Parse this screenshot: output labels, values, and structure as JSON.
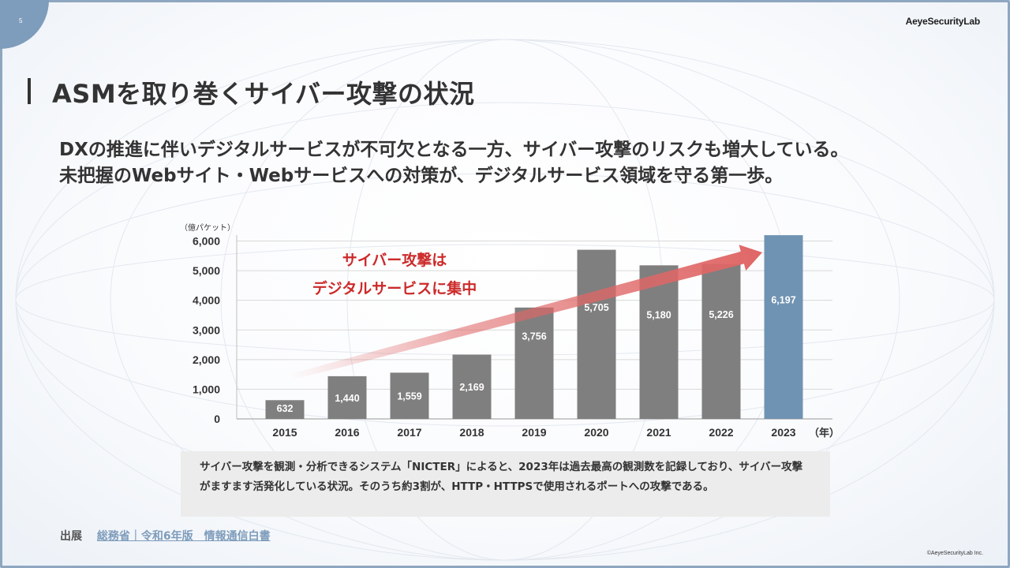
{
  "page_number": "5",
  "brand": "AeyeSecurityLab",
  "title": "ASMを取り巻くサイバー攻撃の状況",
  "lead": [
    "DXの推進に伴いデジタルサービスが不可欠となる一方、サイバー攻撃のリスクも増大している。",
    "未把握のWebサイト・Webサービスへの対策が、デジタルサービス領域を守る第一歩。"
  ],
  "chart_data": {
    "type": "bar",
    "categories": [
      "2015",
      "2016",
      "2017",
      "2018",
      "2019",
      "2020",
      "2021",
      "2022",
      "2023"
    ],
    "values": [
      632,
      1440,
      1559,
      2169,
      3756,
      5705,
      5180,
      5226,
      6197
    ],
    "value_labels": [
      "632",
      "1,440",
      "1,559",
      "2,169",
      "3,756",
      "5,705",
      "5,180",
      "5,226",
      "6,197"
    ],
    "y_ticks": [
      "0",
      "1,000",
      "2,000",
      "3,000",
      "4,000",
      "5,000",
      "6,000"
    ],
    "ylim": [
      0,
      6200
    ],
    "ylabel": "（億パケット）",
    "xlabel": "（年）",
    "grid": true,
    "bar_color": "#7f7f7f",
    "highlight_color": "#6f93b2",
    "highlight_index": 8,
    "arrow_color": "#e06666",
    "annotation": [
      "サイバー攻撃は",
      "デジタルサービスに集中"
    ],
    "annotation_color": "#cc2a2a"
  },
  "note": "サイバー攻撃を観測・分析できるシステム「NICTER」によると、2023年は過去最高の観測数を記録しており、サイバー攻撃がますます活発化している状況。そのうち約3割が、HTTP・HTTPSで使用されるポートへの攻撃である。",
  "source": {
    "label": "出展",
    "link_text": "総務省｜令和6年版　情報通信白書"
  },
  "copyright": "©AeyeSecurityLab Inc."
}
